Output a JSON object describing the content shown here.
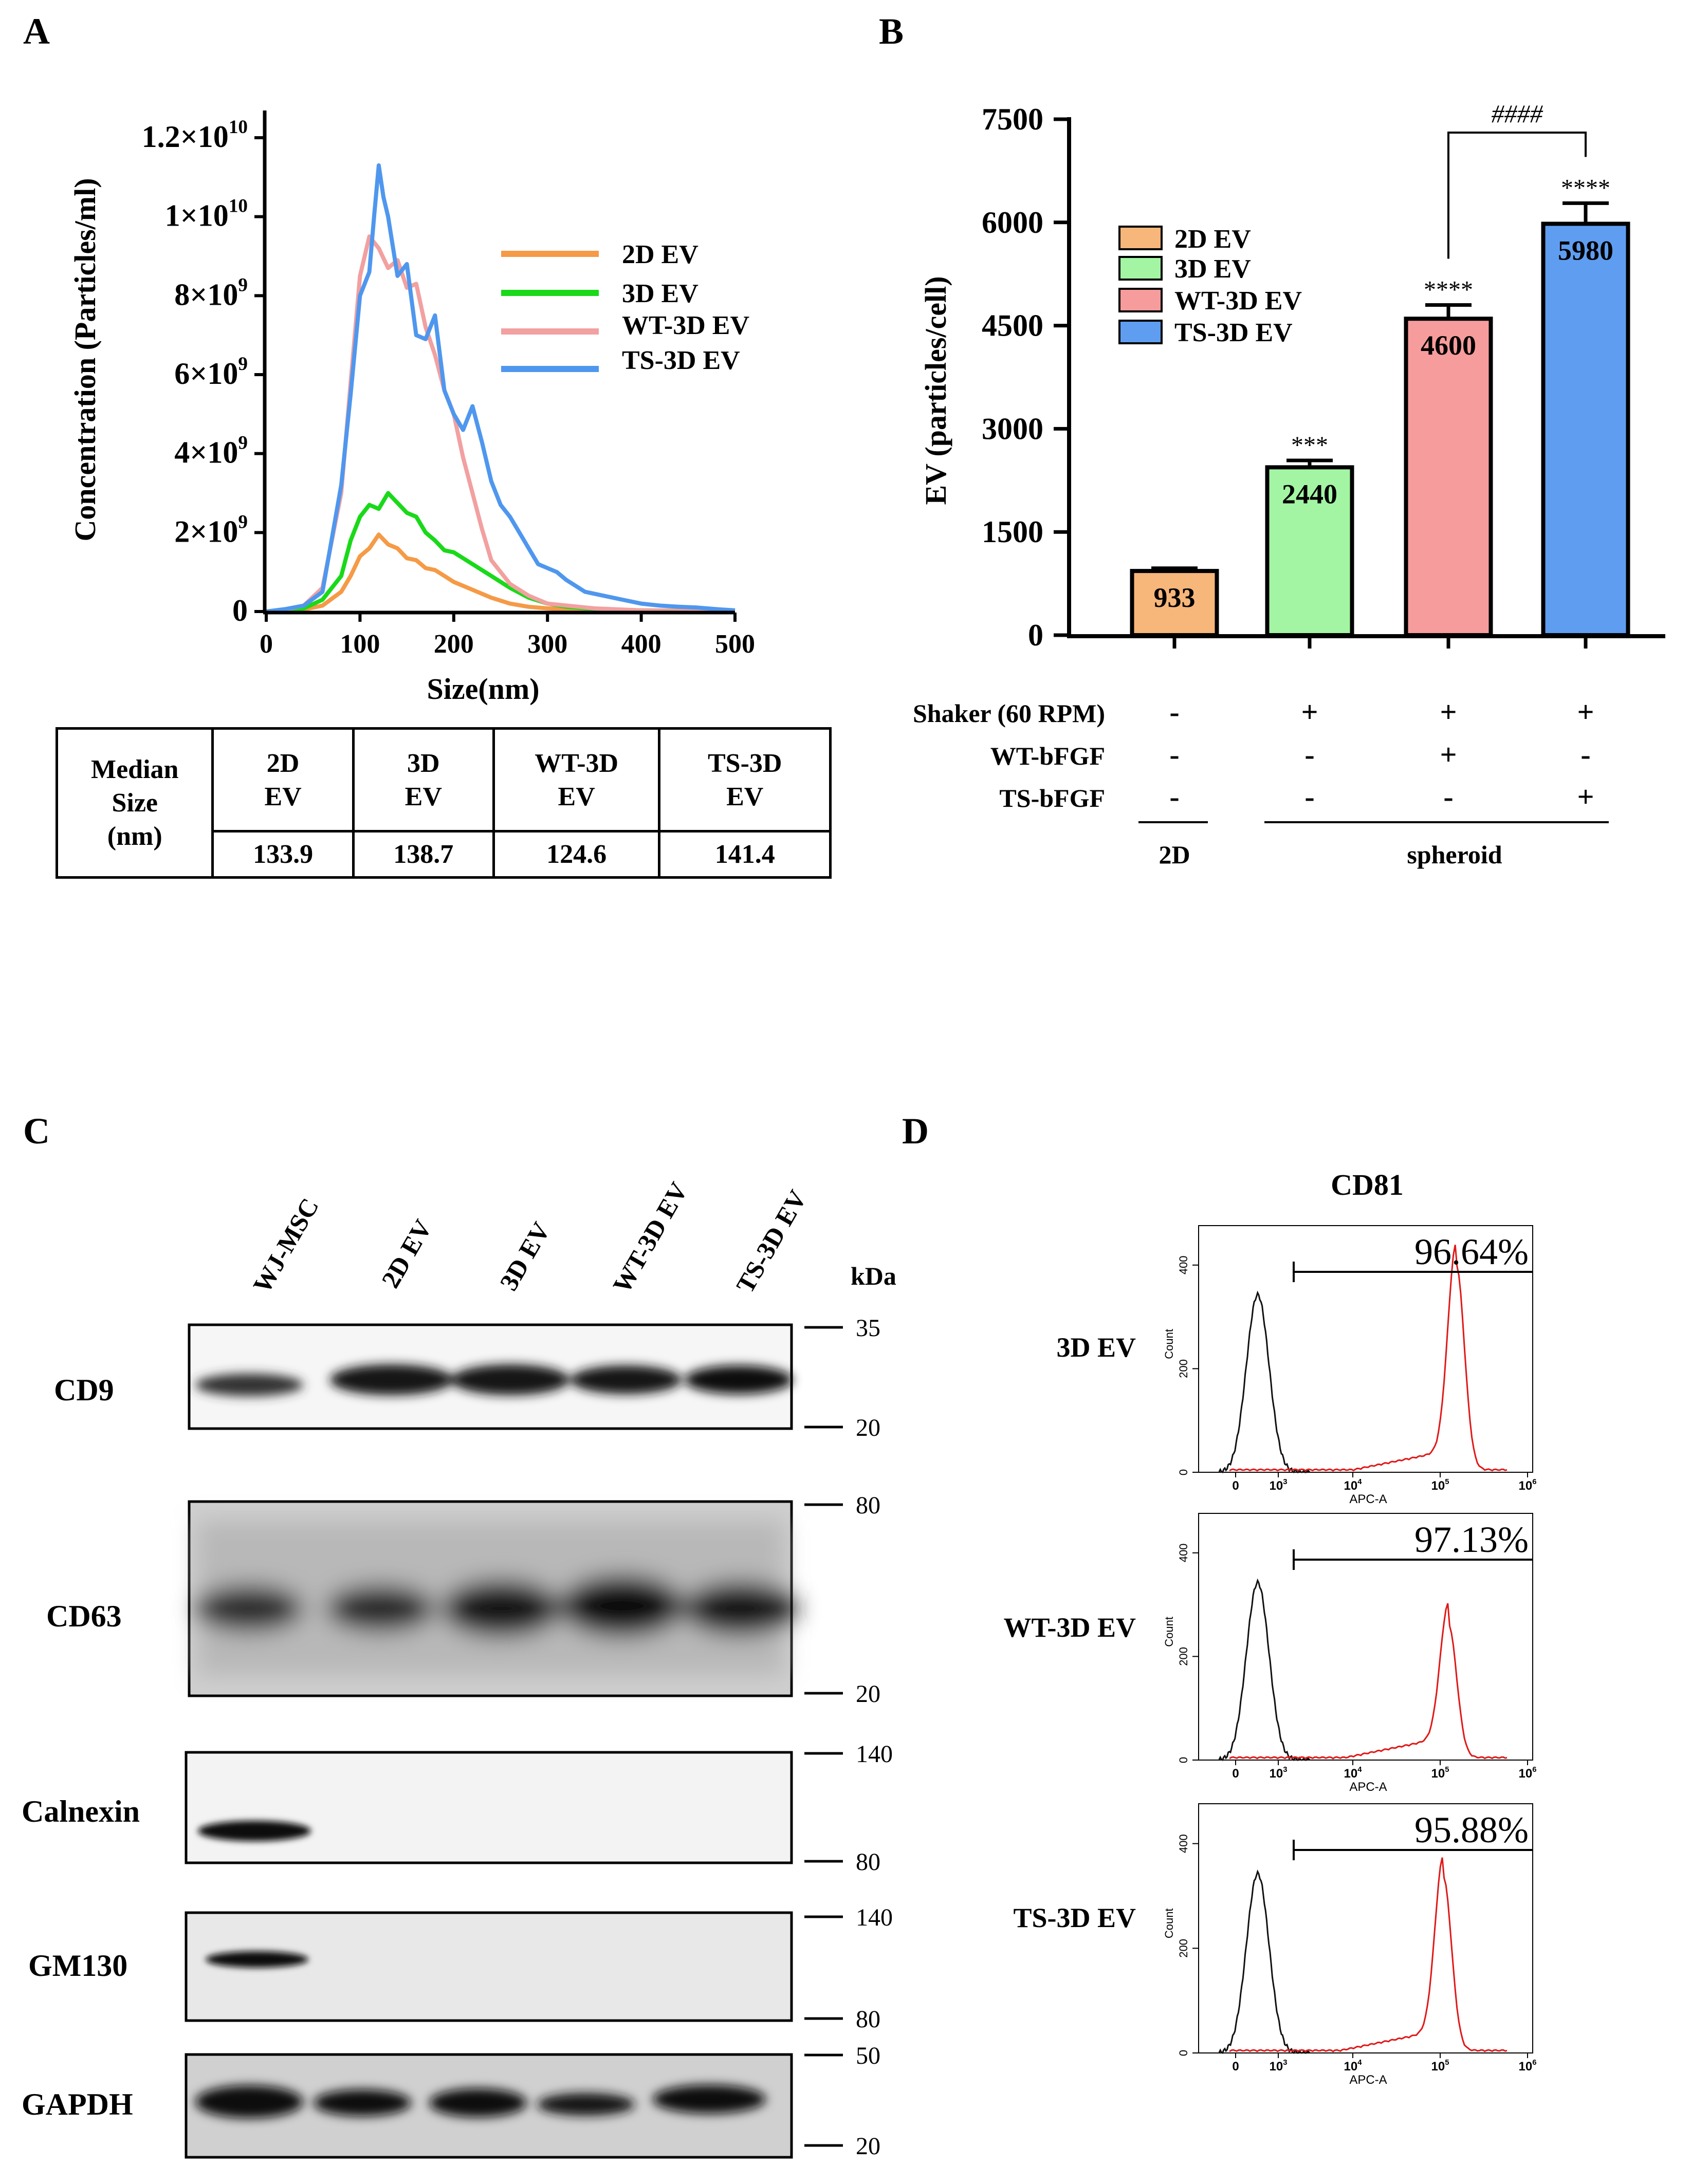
{
  "panels": {
    "a": "A",
    "b": "B",
    "c": "C",
    "d": "D"
  },
  "colors": {
    "2d_ev": "#f59a46",
    "3d_ev": "#19d919",
    "wt_3d_ev": "#f2a0a0",
    "ts_3d_ev": "#4f97ee",
    "bar_2d": "#f7b67a",
    "bar_3d": "#a3f5a3",
    "bar_wt": "#f79c9c",
    "bar_ts": "#5f9df1"
  },
  "chart_data": [
    {
      "id": "A",
      "type": "line",
      "xlabel": "Size(nm)",
      "ylabel": "Concentration (Particles/ml)",
      "xlim": [
        0,
        500
      ],
      "ylim": [
        0,
        12000000000
      ],
      "x_ticks": [
        "0",
        "100",
        "200",
        "300",
        "400",
        "500"
      ],
      "y_ticks": [
        {
          "base": "0",
          "exp": ""
        },
        {
          "base": "2×10",
          "exp": "9"
        },
        {
          "base": "4×10",
          "exp": "9"
        },
        {
          "base": "6×10",
          "exp": "9"
        },
        {
          "base": "8×10",
          "exp": "9"
        },
        {
          "base": "1×10",
          "exp": "10"
        },
        {
          "base": "1.2×10",
          "exp": "10"
        }
      ],
      "legend": [
        "2D EV",
        "3D EV",
        "WT-3D EV",
        "TS-3D EV"
      ],
      "series": [
        {
          "name": "2D EV",
          "x": [
            0,
            20,
            40,
            60,
            80,
            90,
            100,
            110,
            120,
            130,
            140,
            150,
            160,
            170,
            180,
            190,
            200,
            220,
            240,
            260,
            280,
            300,
            320,
            350,
            400,
            450,
            500
          ],
          "values": [
            0,
            0.02,
            0.05,
            0.15,
            0.5,
            0.9,
            1.4,
            1.6,
            1.95,
            1.7,
            1.6,
            1.35,
            1.3,
            1.1,
            1.05,
            0.9,
            0.75,
            0.55,
            0.35,
            0.2,
            0.12,
            0.08,
            0.05,
            0.03,
            0.02,
            0.01,
            0
          ]
        },
        {
          "name": "3D EV",
          "x": [
            0,
            20,
            40,
            60,
            80,
            90,
            100,
            110,
            120,
            130,
            140,
            150,
            160,
            170,
            180,
            190,
            200,
            220,
            240,
            260,
            280,
            300,
            320,
            350,
            400,
            450,
            500
          ],
          "values": [
            0,
            0.03,
            0.08,
            0.3,
            0.9,
            1.8,
            2.4,
            2.7,
            2.6,
            3.0,
            2.75,
            2.5,
            2.4,
            2.0,
            1.8,
            1.55,
            1.5,
            1.2,
            0.9,
            0.6,
            0.35,
            0.2,
            0.12,
            0.06,
            0.03,
            0.02,
            0
          ]
        },
        {
          "name": "WT-3D EV",
          "x": [
            0,
            20,
            40,
            60,
            80,
            90,
            100,
            110,
            120,
            130,
            140,
            150,
            160,
            170,
            180,
            190,
            200,
            210,
            220,
            230,
            240,
            260,
            280,
            300,
            350,
            400,
            500
          ],
          "values": [
            0,
            0.05,
            0.15,
            0.6,
            3.0,
            5.8,
            8.5,
            9.5,
            9.2,
            8.7,
            8.9,
            8.2,
            8.3,
            7.2,
            6.5,
            5.6,
            5.0,
            3.9,
            3.0,
            2.1,
            1.3,
            0.7,
            0.4,
            0.2,
            0.08,
            0.03,
            0
          ]
        },
        {
          "name": "TS-3D EV",
          "x": [
            0,
            20,
            40,
            60,
            80,
            90,
            100,
            110,
            115,
            120,
            125,
            130,
            140,
            150,
            160,
            170,
            180,
            190,
            200,
            210,
            220,
            230,
            240,
            250,
            260,
            270,
            280,
            290,
            300,
            310,
            320,
            340,
            360,
            380,
            400,
            420,
            440,
            460,
            480,
            500
          ],
          "values": [
            0,
            0.06,
            0.15,
            0.5,
            3.2,
            5.5,
            8.0,
            8.6,
            10.0,
            11.3,
            10.5,
            10.0,
            8.5,
            8.8,
            7.0,
            6.9,
            7.5,
            5.6,
            5.0,
            4.6,
            5.2,
            4.3,
            3.3,
            2.7,
            2.4,
            2.0,
            1.6,
            1.2,
            1.1,
            1.0,
            0.8,
            0.5,
            0.4,
            0.3,
            0.2,
            0.15,
            0.12,
            0.1,
            0.06,
            0.03
          ]
        }
      ]
    },
    {
      "id": "B",
      "type": "bar",
      "ylabel": "EV (particles/cell)",
      "ylim": [
        0,
        7500
      ],
      "y_ticks": [
        "0",
        "1500",
        "3000",
        "4500",
        "6000",
        "7500"
      ],
      "categories": [
        "2D EV",
        "3D EV",
        "WT-3D EV",
        "TS-3D EV"
      ],
      "values": [
        933,
        2440,
        4600,
        5980
      ],
      "value_labels": [
        "933",
        "2440",
        "4600",
        "5980"
      ],
      "errors": [
        40,
        100,
        200,
        300
      ],
      "significance": [
        "",
        "***",
        "****",
        "****"
      ],
      "bracket_label": "####",
      "legend": [
        "2D EV",
        "3D EV",
        "WT-3D EV",
        "TS-3D EV"
      ],
      "conditions": {
        "rows": [
          {
            "label": "Shaker (60 RPM)",
            "values": [
              "-",
              "+",
              "+",
              "+"
            ]
          },
          {
            "label": "WT-bFGF",
            "values": [
              "-",
              "-",
              "+",
              "-"
            ]
          },
          {
            "label": "TS-bFGF",
            "values": [
              "-",
              "-",
              "-",
              "+"
            ]
          }
        ],
        "groups": [
          "2D",
          "spheroid"
        ]
      }
    },
    {
      "id": "D",
      "type": "histogram",
      "title": "CD81",
      "xlabel": "APC-A",
      "ylabel": "Count",
      "x_ticks": [
        {
          "base": "0",
          "exp": ""
        },
        {
          "base": "10",
          "exp": "3"
        },
        {
          "base": "10",
          "exp": "4"
        },
        {
          "base": "10",
          "exp": "5"
        },
        {
          "base": "10",
          "exp": "6"
        }
      ],
      "y_ticks": [
        "0",
        "200",
        "400"
      ],
      "samples": [
        {
          "name": "3D EV",
          "percent": "96.64%"
        },
        {
          "name": "WT-3D EV",
          "percent": "97.13%"
        },
        {
          "name": "TS-3D EV",
          "percent": "95.88%"
        }
      ]
    }
  ],
  "median_table": {
    "header": "Median Size (nm)",
    "header_lines": [
      "Median",
      "Size",
      "(nm)"
    ],
    "columns": [
      {
        "line1": "2D",
        "line2": "EV",
        "value": "133.9"
      },
      {
        "line1": "3D",
        "line2": "EV",
        "value": "138.7"
      },
      {
        "line1": "WT-3D",
        "line2": "EV",
        "value": "124.6"
      },
      {
        "line1": "TS-3D",
        "line2": "EV",
        "value": "141.4"
      }
    ]
  },
  "western_blot": {
    "lanes": [
      "WJ-MSC",
      "2D EV",
      "3D EV",
      "WT-3D EV",
      "TS-3D EV"
    ],
    "kda_label": "kDa",
    "blots": [
      {
        "name": "CD9",
        "markers": [
          "35",
          "20"
        ]
      },
      {
        "name": "CD63",
        "markers": [
          "80",
          "20"
        ]
      },
      {
        "name": "Calnexin",
        "markers": [
          "140",
          "80"
        ]
      },
      {
        "name": "GM130",
        "markers": [
          "140",
          "80"
        ]
      },
      {
        "name": "GAPDH",
        "markers": [
          "50",
          "20"
        ]
      }
    ]
  }
}
